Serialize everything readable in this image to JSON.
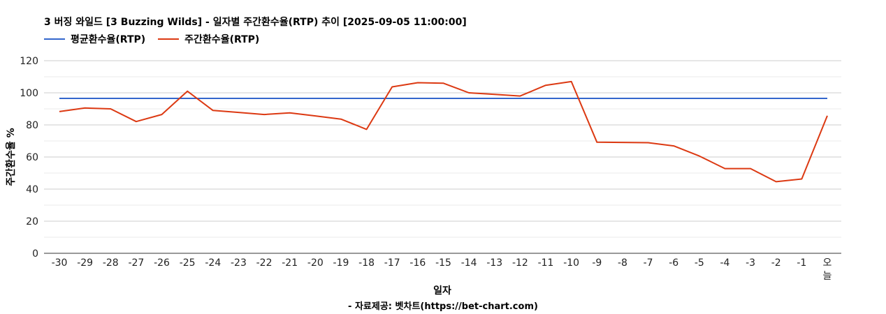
{
  "chart_data": {
    "type": "line",
    "title": "3 버징 와일드 [3 Buzzing Wilds] - 일자별 주간환수율(RTP) 추이 [2025-09-05 11:00:00]",
    "xlabel": "일자",
    "ylabel": "주간환수율 %",
    "ylim": [
      0,
      120
    ],
    "yticks": [
      "0",
      "20",
      "40",
      "60",
      "80",
      "100",
      "120"
    ],
    "grid": true,
    "legend": "top-left",
    "categories": [
      "-30",
      "-29",
      "-28",
      "-27",
      "-26",
      "-25",
      "-24",
      "-23",
      "-22",
      "-21",
      "-20",
      "-19",
      "-18",
      "-17",
      "-16",
      "-15",
      "-14",
      "-13",
      "-12",
      "-11",
      "-10",
      "-9",
      "-8",
      "-7",
      "-6",
      "-5",
      "-4",
      "-3",
      "-2",
      "-1",
      "오늘"
    ],
    "series": [
      {
        "name": "평균환수율(RTP)",
        "color": "#3366cc",
        "values": [
          96.5,
          96.5,
          96.5,
          96.5,
          96.5,
          96.5,
          96.5,
          96.5,
          96.5,
          96.5,
          96.5,
          96.5,
          96.5,
          96.5,
          96.5,
          96.5,
          96.5,
          96.5,
          96.5,
          96.5,
          96.5,
          96.5,
          96.5,
          96.5,
          96.5,
          96.5,
          96.5,
          96.5,
          96.5,
          96.5,
          96.5
        ]
      },
      {
        "name": "주간환수율(RTP)",
        "color": "#dc3912",
        "values": [
          88.3,
          90.5,
          90.0,
          82.1,
          86.5,
          101.0,
          89.0,
          87.8,
          86.5,
          87.5,
          85.6,
          83.6,
          77.2,
          103.7,
          106.3,
          106.0,
          100.0,
          99.0,
          98.0,
          104.7,
          107.0,
          69.2,
          69.1,
          68.9,
          66.9,
          60.6,
          52.8,
          52.8,
          44.6,
          46.3,
          85.7
        ]
      }
    ],
    "source": "- 자료제공: 벳차트(https://bet-chart.com)"
  }
}
